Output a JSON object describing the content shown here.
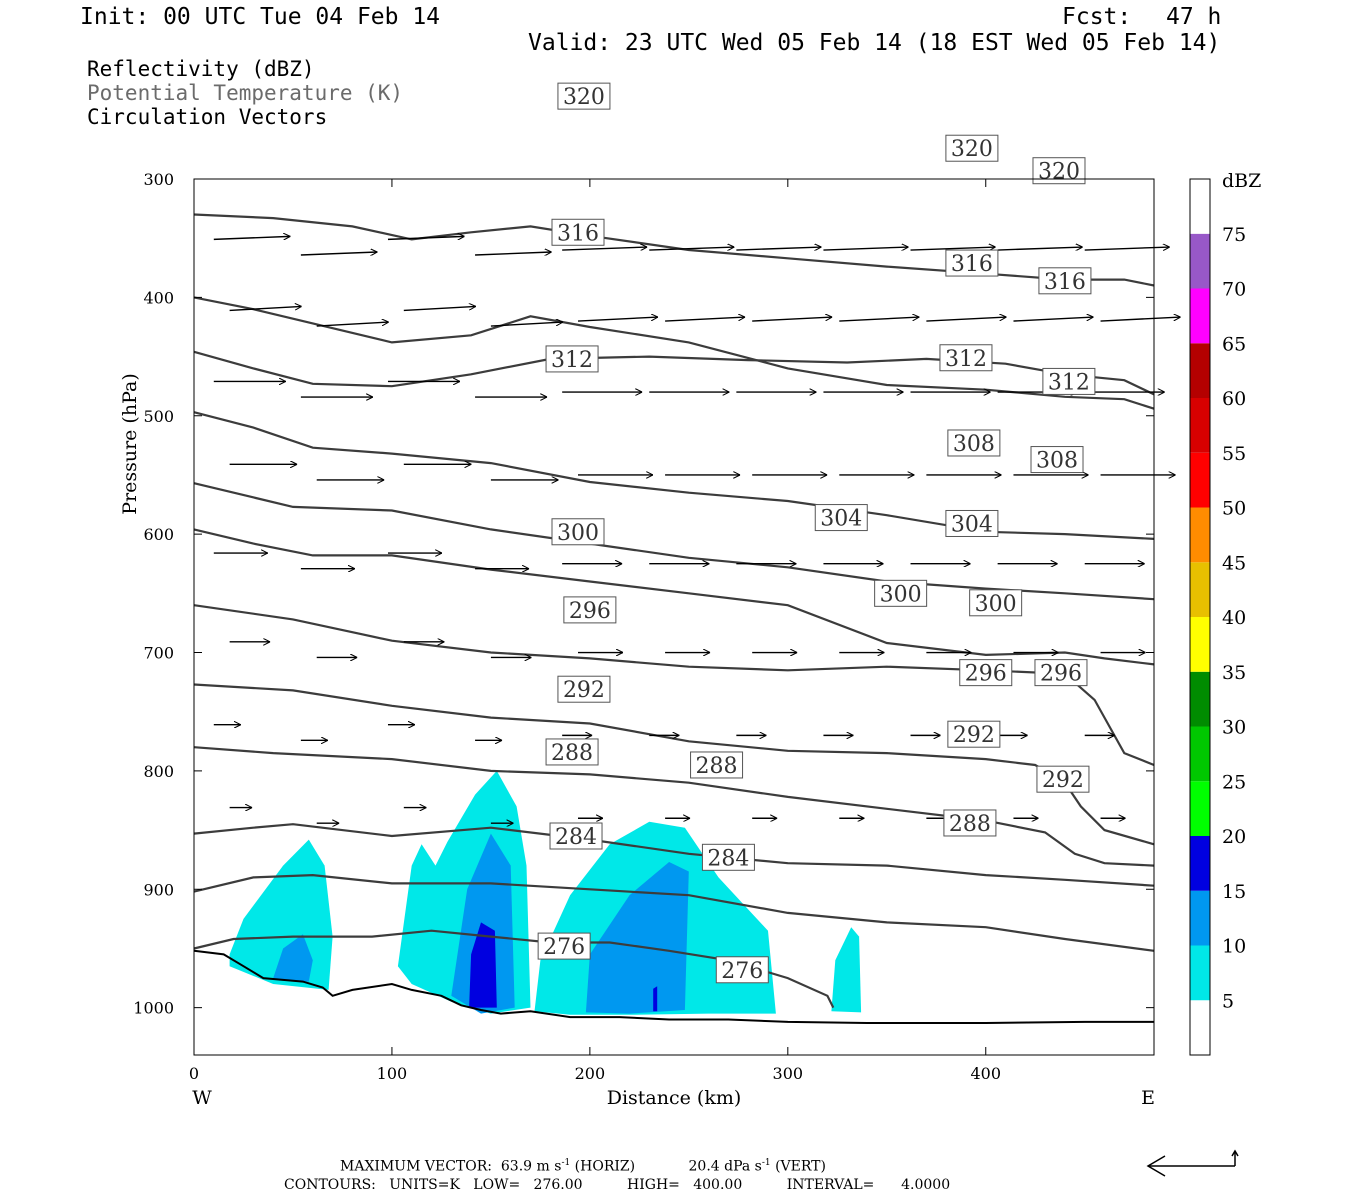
{
  "header": {
    "init": "Init: 00 UTC Tue 04 Feb 14",
    "fcst_label": "Fcst:",
    "fcst_value": "47 h",
    "valid": "Valid: 23 UTC Wed 05 Feb 14 (18 EST Wed 05 Feb 14)",
    "fields": [
      "Reflectivity (dBZ)",
      "Potential Temperature (K)",
      "Circulation Vectors"
    ]
  },
  "chart_data": {
    "type": "cross-section",
    "xlabel": "Distance (km)",
    "ylabel": "Pressure (hPa)",
    "xlim": [
      0,
      485
    ],
    "ylim": [
      1040,
      300
    ],
    "x_ticks": [
      0,
      100,
      200,
      300,
      400
    ],
    "y_ticks": [
      300,
      400,
      500,
      600,
      700,
      800,
      900,
      1000
    ],
    "side_labels": {
      "west": "W",
      "east": "E"
    },
    "colorbar": {
      "title": "dBZ",
      "levels": [
        5,
        10,
        15,
        20,
        25,
        30,
        35,
        40,
        45,
        50,
        55,
        60,
        65,
        70,
        75
      ],
      "colors": [
        "#ffffff",
        "#00e8e8",
        "#0098f0",
        "#0000e0",
        "#00ff00",
        "#00c800",
        "#008c00",
        "#ffff00",
        "#e8c000",
        "#ff8c00",
        "#ff0000",
        "#d80000",
        "#b40000",
        "#ff00ff",
        "#9858c8",
        "#ffffff"
      ]
    },
    "theta_contours": [
      {
        "value": 276,
        "label": "276",
        "points": [
          [
            0,
            950
          ],
          [
            20,
            942
          ],
          [
            50,
            940
          ],
          [
            90,
            940
          ],
          [
            120,
            935
          ],
          [
            150,
            940
          ],
          [
            180,
            945
          ],
          [
            210,
            945
          ],
          [
            240,
            952
          ],
          [
            270,
            960
          ],
          [
            300,
            975
          ],
          [
            320,
            990
          ],
          [
            323,
            1000
          ]
        ],
        "label_positions": [
          [
            187,
            948
          ],
          [
            277,
            968
          ]
        ]
      },
      {
        "value": 280,
        "label": "",
        "points": [
          [
            0,
            902
          ],
          [
            30,
            890
          ],
          [
            60,
            888
          ],
          [
            100,
            895
          ],
          [
            150,
            895
          ],
          [
            200,
            900
          ],
          [
            250,
            905
          ],
          [
            300,
            920
          ],
          [
            350,
            928
          ],
          [
            400,
            932
          ],
          [
            440,
            942
          ],
          [
            485,
            952
          ]
        ],
        "label_positions": []
      },
      {
        "value": 284,
        "label": "284",
        "points": [
          [
            0,
            853
          ],
          [
            30,
            848
          ],
          [
            50,
            845
          ],
          [
            100,
            855
          ],
          [
            150,
            848
          ],
          [
            200,
            858
          ],
          [
            250,
            870
          ],
          [
            300,
            878
          ],
          [
            350,
            880
          ],
          [
            400,
            888
          ],
          [
            440,
            892
          ],
          [
            485,
            897
          ]
        ],
        "label_positions": [
          [
            193,
            855
          ],
          [
            270,
            873
          ]
        ]
      },
      {
        "value": 288,
        "label": "288",
        "points": [
          [
            0,
            780
          ],
          [
            40,
            785
          ],
          [
            100,
            790
          ],
          [
            150,
            800
          ],
          [
            200,
            803
          ],
          [
            250,
            810
          ],
          [
            300,
            822
          ],
          [
            350,
            832
          ],
          [
            400,
            842
          ],
          [
            430,
            852
          ],
          [
            445,
            870
          ],
          [
            460,
            878
          ],
          [
            485,
            880
          ]
        ],
        "label_positions": [
          [
            191,
            784
          ],
          [
            264,
            795
          ],
          [
            392,
            844
          ]
        ]
      },
      {
        "value": 292,
        "label": "292",
        "points": [
          [
            0,
            727
          ],
          [
            50,
            732
          ],
          [
            100,
            745
          ],
          [
            150,
            755
          ],
          [
            200,
            760
          ],
          [
            250,
            775
          ],
          [
            300,
            783
          ],
          [
            350,
            785
          ],
          [
            400,
            790
          ],
          [
            425,
            795
          ],
          [
            440,
            810
          ],
          [
            448,
            830
          ],
          [
            460,
            850
          ],
          [
            485,
            862
          ]
        ],
        "label_positions": [
          [
            197,
            731
          ],
          [
            394,
            769
          ],
          [
            439,
            807
          ]
        ]
      },
      {
        "value": 296,
        "label": "296",
        "points": [
          [
            0,
            660
          ],
          [
            50,
            672
          ],
          [
            100,
            690
          ],
          [
            150,
            700
          ],
          [
            200,
            705
          ],
          [
            250,
            712
          ],
          [
            300,
            715
          ],
          [
            350,
            712
          ],
          [
            400,
            715
          ],
          [
            440,
            718
          ],
          [
            455,
            740
          ],
          [
            470,
            785
          ],
          [
            485,
            795
          ]
        ],
        "label_positions": [
          [
            200,
            664
          ],
          [
            400,
            717
          ],
          [
            438,
            717
          ]
        ]
      },
      {
        "value": 300,
        "label": "300",
        "points": [
          [
            0,
            596
          ],
          [
            30,
            608
          ],
          [
            60,
            618
          ],
          [
            100,
            618
          ],
          [
            150,
            630
          ],
          [
            200,
            640
          ],
          [
            250,
            650
          ],
          [
            300,
            660
          ],
          [
            350,
            692
          ],
          [
            400,
            702
          ],
          [
            440,
            700
          ],
          [
            460,
            705
          ],
          [
            485,
            710
          ]
        ],
        "label_positions": [
          [
            194,
            598
          ],
          [
            357,
            650
          ],
          [
            405,
            658
          ]
        ]
      },
      {
        "value": 304,
        "label": "304",
        "points": [
          [
            0,
            557
          ],
          [
            50,
            577
          ],
          [
            100,
            580
          ],
          [
            150,
            596
          ],
          [
            200,
            608
          ],
          [
            250,
            620
          ],
          [
            300,
            628
          ],
          [
            350,
            640
          ],
          [
            400,
            646
          ],
          [
            440,
            650
          ],
          [
            485,
            655
          ]
        ],
        "label_positions": [
          [
            327,
            586
          ],
          [
            393,
            591
          ]
        ]
      },
      {
        "value": 308,
        "label": "308",
        "points": [
          [
            0,
            497
          ],
          [
            30,
            510
          ],
          [
            60,
            527
          ],
          [
            100,
            532
          ],
          [
            150,
            540
          ],
          [
            200,
            556
          ],
          [
            250,
            565
          ],
          [
            300,
            572
          ],
          [
            350,
            584
          ],
          [
            400,
            598
          ],
          [
            440,
            600
          ],
          [
            485,
            604
          ]
        ],
        "label_positions": [
          [
            394,
            523
          ],
          [
            436,
            537
          ]
        ]
      },
      {
        "value": 312,
        "label": "312",
        "points": [
          [
            0,
            446
          ],
          [
            30,
            460
          ],
          [
            60,
            473
          ],
          [
            100,
            475
          ],
          [
            140,
            465
          ],
          [
            180,
            452
          ],
          [
            230,
            450
          ],
          [
            280,
            453
          ],
          [
            330,
            455
          ],
          [
            370,
            452
          ],
          [
            410,
            456
          ],
          [
            440,
            465
          ],
          [
            470,
            470
          ],
          [
            485,
            482
          ]
        ],
        "label_positions": [
          [
            191,
            452
          ],
          [
            390,
            451
          ],
          [
            442,
            471
          ]
        ]
      },
      {
        "value": 316,
        "label": "316",
        "points": [
          [
            0,
            400
          ],
          [
            30,
            410
          ],
          [
            60,
            422
          ],
          [
            100,
            438
          ],
          [
            140,
            432
          ],
          [
            170,
            416
          ],
          [
            200,
            425
          ],
          [
            250,
            438
          ],
          [
            300,
            460
          ],
          [
            350,
            474
          ],
          [
            400,
            478
          ],
          [
            440,
            484
          ],
          [
            470,
            486
          ],
          [
            485,
            494
          ]
        ],
        "label_positions": [
          [
            194,
            345
          ],
          [
            393,
            371
          ],
          [
            440,
            386
          ]
        ]
      },
      {
        "value": 320,
        "label": "320",
        "points": [
          [
            0,
            330
          ],
          [
            40,
            333
          ],
          [
            80,
            340
          ],
          [
            110,
            351
          ],
          [
            140,
            345
          ],
          [
            170,
            340
          ],
          [
            200,
            348
          ],
          [
            250,
            360
          ],
          [
            300,
            367
          ],
          [
            350,
            374
          ],
          [
            400,
            380
          ],
          [
            440,
            385
          ],
          [
            470,
            385
          ],
          [
            485,
            390
          ]
        ],
        "label_positions": [
          [
            197,
            230
          ],
          [
            393,
            274
          ],
          [
            437,
            293
          ]
        ]
      }
    ],
    "wind_vectors_note": "Circulation vectors shown as arrows; maximum vector 63.9 m s-1 (horiz), 20.4 dPa s-1 (vert)",
    "reflectivity_cells": [
      {
        "level": 5,
        "polygon": [
          [
            18,
            955
          ],
          [
            25,
            925
          ],
          [
            45,
            880
          ],
          [
            58,
            858
          ],
          [
            66,
            880
          ],
          [
            70,
            940
          ],
          [
            68,
            985
          ],
          [
            40,
            980
          ],
          [
            18,
            965
          ]
        ]
      },
      {
        "level": 10,
        "polygon": [
          [
            40,
            975
          ],
          [
            45,
            950
          ],
          [
            55,
            938
          ],
          [
            60,
            960
          ],
          [
            58,
            978
          ]
        ]
      },
      {
        "level": 5,
        "polygon": [
          [
            103,
            965
          ],
          [
            110,
            880
          ],
          [
            115,
            862
          ],
          [
            122,
            880
          ],
          [
            128,
            860
          ],
          [
            142,
            820
          ],
          [
            153,
            800
          ],
          [
            163,
            830
          ],
          [
            168,
            880
          ],
          [
            170,
            1000
          ],
          [
            150,
            1005
          ],
          [
            130,
            995
          ],
          [
            110,
            980
          ]
        ]
      },
      {
        "level": 10,
        "polygon": [
          [
            130,
            990
          ],
          [
            138,
            900
          ],
          [
            150,
            853
          ],
          [
            160,
            880
          ],
          [
            162,
            1000
          ],
          [
            145,
            1005
          ]
        ]
      },
      {
        "level": 15,
        "polygon": [
          [
            139,
            1000
          ],
          [
            140,
            955
          ],
          [
            145,
            928
          ],
          [
            152,
            935
          ],
          [
            153,
            1000
          ]
        ]
      },
      {
        "level": 5,
        "polygon": [
          [
            172,
            1003
          ],
          [
            175,
            960
          ],
          [
            190,
            905
          ],
          [
            210,
            862
          ],
          [
            230,
            843
          ],
          [
            248,
            848
          ],
          [
            265,
            890
          ],
          [
            290,
            935
          ],
          [
            294,
            1005
          ],
          [
            260,
            1005
          ],
          [
            220,
            1006
          ],
          [
            190,
            1006
          ]
        ]
      },
      {
        "level": 10,
        "polygon": [
          [
            198,
            1004
          ],
          [
            200,
            955
          ],
          [
            220,
            905
          ],
          [
            240,
            877
          ],
          [
            250,
            885
          ],
          [
            248,
            1002
          ],
          [
            220,
            1005
          ]
        ]
      },
      {
        "level": 15,
        "polygon": [
          [
            232,
            1003
          ],
          [
            232,
            984
          ],
          [
            234,
            982
          ],
          [
            234,
            1003
          ]
        ]
      },
      {
        "level": 5,
        "polygon": [
          [
            322,
            1003
          ],
          [
            324,
            960
          ],
          [
            332,
            932
          ],
          [
            336,
            940
          ],
          [
            337,
            1004
          ]
        ]
      }
    ]
  },
  "footer": {
    "max_vector_label": "MAXIMUM VECTOR:",
    "max_vector_horiz": "63.9 m s",
    "max_vector_horiz_sup": "-1",
    "max_vector_horiz_tag": "(HORIZ)",
    "max_vector_vert": "20.4 dPa s",
    "max_vector_vert_sup": "-1",
    "max_vector_vert_tag": "(VERT)",
    "contours_line": "CONTOURS:   UNITS=K   LOW=   276.00          HIGH=   400.00          INTERVAL=      4.0000"
  }
}
